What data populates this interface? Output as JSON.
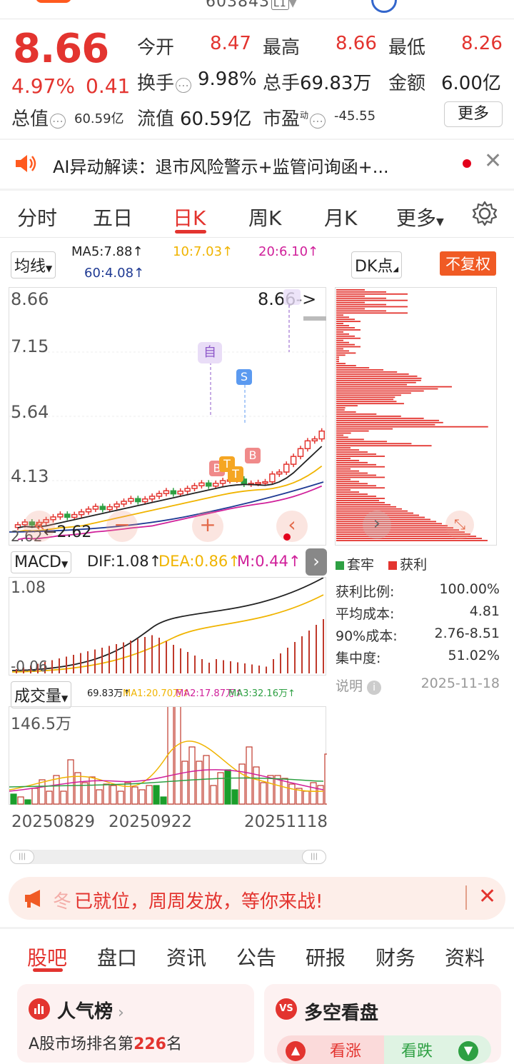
{
  "header": {
    "code": "603843",
    "code_badge": "L1"
  },
  "quote": {
    "price": "8.66",
    "pct": "4.97%",
    "change": "0.41",
    "open_label": "今开",
    "open": "8.47",
    "high_label": "最高",
    "high": "8.66",
    "low_label": "最低",
    "low": "8.26",
    "turnover_label": "换手",
    "turnover": "9.98%",
    "volume_label": "总手",
    "volume": "69.83万",
    "amount_label": "金额",
    "amount": "6.00亿",
    "mktcap_label": "总值",
    "mktcap": "60.59亿",
    "float_label": "流值",
    "float": "60.59亿",
    "pe_label": "市盈",
    "pe_sup": "动",
    "pe": "-45.55",
    "more": "更多"
  },
  "ai": {
    "text": "AI异动解读：退市风险警示+监管问询函+..."
  },
  "tabs": [
    "分时",
    "五日",
    "日K",
    "周K",
    "月K",
    "更多"
  ],
  "ma": {
    "selector": "均线",
    "ma5": "MA5:7.88↑",
    "ma10": "10:7.03↑",
    "ma20": "20:6.10↑",
    "ma60": "60:4.08↑",
    "dk": "DK点",
    "fq": "不复权",
    "c_ma5": "#222222",
    "c_ma10": "#f0b400",
    "c_ma20": "#d0209a",
    "c_ma60": "#1f3a93"
  },
  "kchart": {
    "ticks": [
      "8.66",
      "7.15",
      "5.64",
      "4.13",
      "2.62"
    ],
    "last_label": "8.66->",
    "min_label": "2.62",
    "markers": {
      "zi": "自",
      "s": "S",
      "b": "B",
      "t": "T"
    }
  },
  "macd": {
    "selector": "MACD",
    "dif": "DIF:1.08↑",
    "dea": "DEA:0.86↑",
    "m": "M:0.44↑",
    "top": "1.08",
    "bottom": "-0.06"
  },
  "vol": {
    "selector": "成交量",
    "v": "69.83万↑",
    "ma1": "MA1:20.70万↑",
    "ma2": "MA2:17.87万↑",
    "ma3": "MA3:32.16万↑",
    "top": "146.5万",
    "dates": [
      "20250829",
      "20250922",
      "20251118"
    ]
  },
  "chip": {
    "legend_trap": "套牢",
    "legend_profit": "获利",
    "stats": [
      {
        "label": "获利比例:",
        "value": "100.00%"
      },
      {
        "label": "平均成本:",
        "value": "4.81"
      },
      {
        "label": "90%成本:",
        "value": "2.76-8.51"
      },
      {
        "label": "集中度:",
        "value": "51.02%"
      }
    ],
    "note": "说明",
    "date": "2025-11-18"
  },
  "banner": {
    "text": "已就位，周周发放，等你来战!"
  },
  "bottom_tabs": [
    "股吧",
    "盘口",
    "资讯",
    "公告",
    "研报",
    "财务",
    "资料"
  ],
  "cards": {
    "rank_title": "人气榜",
    "rank_prefix": "A股市场排名第",
    "rank_num": "226",
    "rank_suffix": "名",
    "bull_title": "多空看盘",
    "bull": "看涨",
    "bear": "看跌"
  }
}
